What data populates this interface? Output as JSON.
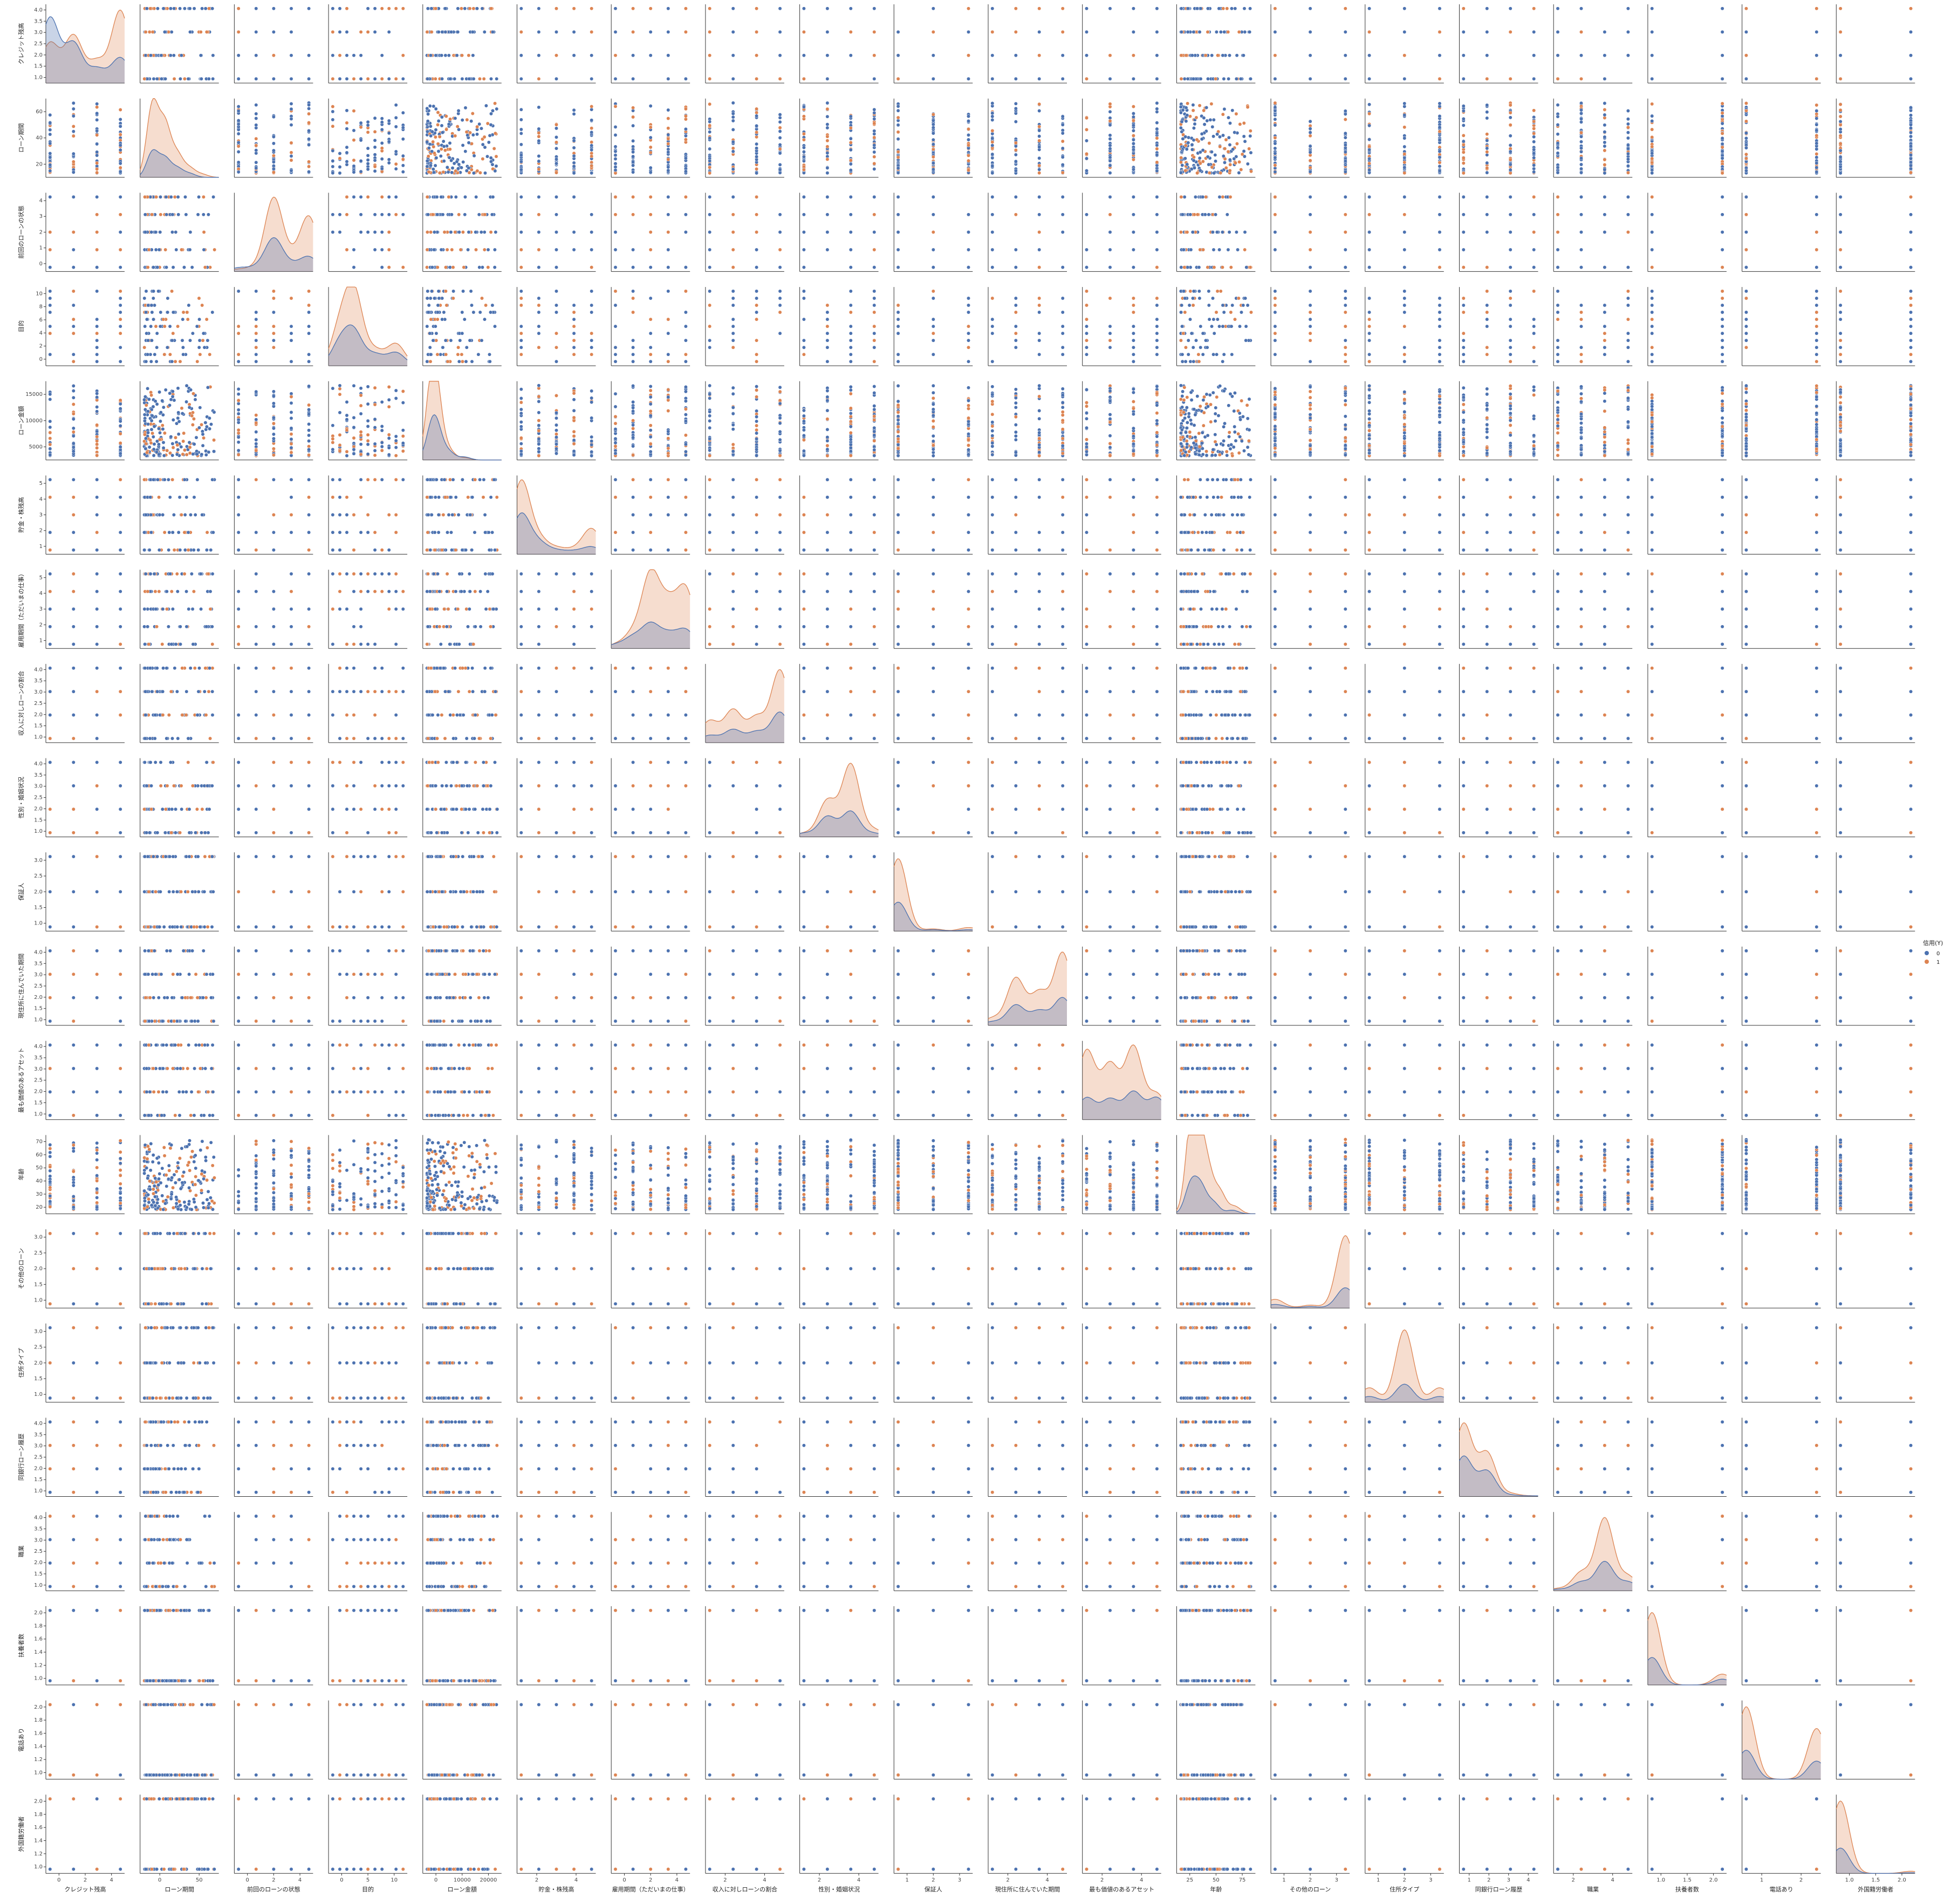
{
  "chart_data": {
    "type": "scatter",
    "subtype": "pairplot",
    "diag_kind": "kde",
    "hue": "信用(Y)",
    "hue_levels": [
      "0",
      "1"
    ],
    "hue_colors": [
      "#4c72b0",
      "#dd8452"
    ],
    "legend_placement": "right",
    "grid": false,
    "variables": [
      {
        "name": "クレジット残高",
        "range": [
          1,
          4
        ],
        "xticks": [
          "0",
          "2",
          "4"
        ],
        "yticks": [
          "1.0",
          "1.5",
          "2.0",
          "2.5",
          "3.0",
          "3.5",
          "4.0"
        ],
        "kde0": [
          [
            1,
            0.9
          ],
          [
            2,
            0.55
          ],
          [
            3,
            0.2
          ],
          [
            4,
            0.35
          ]
        ],
        "kde1": [
          [
            1,
            0.55
          ],
          [
            2,
            0.65
          ],
          [
            3,
            0.3
          ],
          [
            4,
            1.0
          ]
        ]
      },
      {
        "name": "ローン期間",
        "range": [
          4,
          72
        ],
        "xticks": [
          "0",
          "50"
        ],
        "yticks": [
          "20",
          "40",
          "60"
        ],
        "kde0": [
          [
            12,
            0.35
          ],
          [
            24,
            0.25
          ],
          [
            36,
            0.12
          ],
          [
            48,
            0.05
          ]
        ],
        "kde1": [
          [
            12,
            1.0
          ],
          [
            24,
            0.7
          ],
          [
            36,
            0.3
          ],
          [
            48,
            0.12
          ],
          [
            60,
            0.04
          ]
        ]
      },
      {
        "name": "前回のローンの状態",
        "range": [
          0,
          4
        ],
        "xticks": [
          "0",
          "2",
          "4"
        ],
        "yticks": [
          "0",
          "1",
          "2",
          "3",
          "4"
        ],
        "kde0": [
          [
            0,
            0.05
          ],
          [
            1,
            0.05
          ],
          [
            2,
            0.45
          ],
          [
            3,
            0.08
          ],
          [
            4,
            0.2
          ]
        ],
        "kde1": [
          [
            0,
            0.03
          ],
          [
            1,
            0.05
          ],
          [
            2,
            1.0
          ],
          [
            3,
            0.15
          ],
          [
            4,
            0.75
          ]
        ]
      },
      {
        "name": "目的",
        "range": [
          0,
          10
        ],
        "xticks": [
          "0",
          "5",
          "10"
        ],
        "yticks": [
          "0",
          "2",
          "4",
          "6",
          "8",
          "10"
        ],
        "kde0": [
          [
            1,
            0.3
          ],
          [
            3,
            0.45
          ],
          [
            6,
            0.15
          ],
          [
            9,
            0.18
          ]
        ],
        "kde1": [
          [
            1,
            0.5
          ],
          [
            3,
            1.0
          ],
          [
            6,
            0.2
          ],
          [
            9,
            0.3
          ]
        ]
      },
      {
        "name": "ローン金額",
        "range": [
          250,
          18424
        ],
        "xticks": [
          "0",
          "10000",
          "20000"
        ],
        "yticks": [
          "5000",
          "10000",
          "15000"
        ],
        "kde0": [
          [
            1500,
            0.4
          ],
          [
            3000,
            0.3
          ],
          [
            6000,
            0.1
          ],
          [
            10000,
            0.04
          ]
        ],
        "kde1": [
          [
            1500,
            1.0
          ],
          [
            3000,
            0.55
          ],
          [
            6000,
            0.12
          ],
          [
            10000,
            0.03
          ]
        ]
      },
      {
        "name": "貯金・株残高",
        "range": [
          1,
          5
        ],
        "xticks": [
          "2",
          "4"
        ],
        "yticks": [
          "1",
          "2",
          "3",
          "4",
          "5"
        ],
        "kde0": [
          [
            1,
            0.55
          ],
          [
            2,
            0.15
          ],
          [
            3,
            0.05
          ],
          [
            4,
            0.04
          ],
          [
            5,
            0.1
          ]
        ],
        "kde1": [
          [
            1,
            1.0
          ],
          [
            2,
            0.2
          ],
          [
            3,
            0.08
          ],
          [
            4,
            0.06
          ],
          [
            5,
            0.35
          ]
        ]
      },
      {
        "name": "雇用期間（ただいまの仕事）",
        "range": [
          1,
          5
        ],
        "xticks": [
          "0",
          "2",
          "4"
        ],
        "yticks": [
          "1",
          "2",
          "3",
          "4",
          "5"
        ],
        "kde0": [
          [
            1,
            0.05
          ],
          [
            2,
            0.15
          ],
          [
            3,
            0.32
          ],
          [
            4,
            0.18
          ],
          [
            5,
            0.25
          ]
        ],
        "kde1": [
          [
            1,
            0.05
          ],
          [
            2,
            0.2
          ],
          [
            3,
            1.0
          ],
          [
            4,
            0.55
          ],
          [
            5,
            0.8
          ]
        ]
      },
      {
        "name": "収入に対しローンの割合",
        "range": [
          1,
          4
        ],
        "xticks": [
          "2",
          "4"
        ],
        "yticks": [
          "1.0",
          "1.5",
          "2.0",
          "2.5",
          "3.0",
          "3.5",
          "4.0"
        ],
        "kde0": [
          [
            1,
            0.1
          ],
          [
            2,
            0.18
          ],
          [
            3,
            0.15
          ],
          [
            4,
            0.42
          ]
        ],
        "kde1": [
          [
            1,
            0.3
          ],
          [
            2,
            0.45
          ],
          [
            3,
            0.35
          ],
          [
            4,
            1.0
          ]
        ]
      },
      {
        "name": "性別・婚姻状況",
        "range": [
          1,
          4
        ],
        "xticks": [
          "2",
          "4"
        ],
        "yticks": [
          "1.0",
          "1.5",
          "2.0",
          "2.5",
          "3.0",
          "3.5",
          "4.0"
        ],
        "kde0": [
          [
            1,
            0.05
          ],
          [
            2,
            0.28
          ],
          [
            3,
            0.35
          ],
          [
            4,
            0.05
          ]
        ],
        "kde1": [
          [
            1,
            0.05
          ],
          [
            2,
            0.5
          ],
          [
            3,
            1.0
          ],
          [
            4,
            0.1
          ]
        ]
      },
      {
        "name": "保証人",
        "range": [
          1,
          3
        ],
        "xticks": [
          "1",
          "2",
          "3"
        ],
        "yticks": [
          "1.0",
          "1.5",
          "2.0",
          "2.5",
          "3.0"
        ],
        "kde0": [
          [
            1,
            0.4
          ],
          [
            2,
            0.02
          ],
          [
            3,
            0.02
          ]
        ],
        "kde1": [
          [
            1,
            1.0
          ],
          [
            2,
            0.03
          ],
          [
            3,
            0.05
          ]
        ]
      },
      {
        "name": "現住所に住んでいた期間",
        "range": [
          1,
          4
        ],
        "xticks": [
          "2",
          "4"
        ],
        "yticks": [
          "1.0",
          "1.5",
          "2.0",
          "2.5",
          "3.0",
          "3.5",
          "4.0"
        ],
        "kde0": [
          [
            1,
            0.05
          ],
          [
            2,
            0.28
          ],
          [
            3,
            0.2
          ],
          [
            4,
            0.38
          ]
        ],
        "kde1": [
          [
            1,
            0.1
          ],
          [
            2,
            0.65
          ],
          [
            3,
            0.45
          ],
          [
            4,
            1.0
          ]
        ]
      },
      {
        "name": "最も価値のあるアセット",
        "range": [
          1,
          4
        ],
        "xticks": [
          "2",
          "4"
        ],
        "yticks": [
          "1.0",
          "1.5",
          "2.0",
          "2.5",
          "3.0",
          "3.5",
          "4.0"
        ],
        "kde0": [
          [
            1,
            0.3
          ],
          [
            2,
            0.28
          ],
          [
            3,
            0.38
          ],
          [
            4,
            0.3
          ]
        ],
        "kde1": [
          [
            1,
            0.95
          ],
          [
            2,
            0.75
          ],
          [
            3,
            1.0
          ],
          [
            4,
            0.35
          ]
        ]
      },
      {
        "name": "年齢",
        "range": [
          19,
          75
        ],
        "xticks": [
          "25",
          "50",
          "75"
        ],
        "yticks": [
          "20",
          "30",
          "40",
          "50",
          "60",
          "70"
        ],
        "kde0": [
          [
            27,
            0.4
          ],
          [
            35,
            0.35
          ],
          [
            45,
            0.15
          ],
          [
            60,
            0.05
          ]
        ],
        "kde1": [
          [
            27,
            0.95
          ],
          [
            32,
            1.0
          ],
          [
            40,
            0.6
          ],
          [
            50,
            0.3
          ],
          [
            62,
            0.1
          ]
        ]
      },
      {
        "name": "その他のローン",
        "range": [
          1,
          3
        ],
        "xticks": [
          "1",
          "2",
          "3"
        ],
        "yticks": [
          "1.0",
          "1.5",
          "2.0",
          "2.5",
          "3.0"
        ],
        "kde0": [
          [
            1,
            0.05
          ],
          [
            2,
            0.02
          ],
          [
            3,
            0.28
          ]
        ],
        "kde1": [
          [
            1,
            0.12
          ],
          [
            2,
            0.04
          ],
          [
            3,
            1.0
          ]
        ]
      },
      {
        "name": "住所タイプ",
        "range": [
          1,
          3
        ],
        "xticks": [
          "1",
          "2",
          "3"
        ],
        "yticks": [
          "1.0",
          "1.5",
          "2.0",
          "2.5",
          "3.0"
        ],
        "kde0": [
          [
            1,
            0.08
          ],
          [
            2,
            0.25
          ],
          [
            3,
            0.08
          ]
        ],
        "kde1": [
          [
            1,
            0.2
          ],
          [
            2,
            1.0
          ],
          [
            3,
            0.2
          ]
        ]
      },
      {
        "name": "同銀行ローン履歴",
        "range": [
          1,
          4
        ],
        "xticks": [
          "1",
          "2",
          "3",
          "4"
        ],
        "yticks": [
          "1.0",
          "1.5",
          "2.0",
          "2.5",
          "3.0",
          "3.5",
          "4.0"
        ],
        "kde0": [
          [
            1,
            0.55
          ],
          [
            2,
            0.35
          ],
          [
            3,
            0.02
          ],
          [
            4,
            0.01
          ]
        ],
        "kde1": [
          [
            1,
            1.0
          ],
          [
            2,
            0.6
          ],
          [
            3,
            0.04
          ],
          [
            4,
            0.01
          ]
        ]
      },
      {
        "name": "職業",
        "range": [
          1,
          4
        ],
        "xticks": [
          "2",
          "4"
        ],
        "yticks": [
          "1.0",
          "1.5",
          "2.0",
          "2.5",
          "3.0",
          "3.5",
          "4.0"
        ],
        "kde0": [
          [
            1,
            0.02
          ],
          [
            2,
            0.12
          ],
          [
            3,
            0.4
          ],
          [
            4,
            0.12
          ]
        ],
        "kde1": [
          [
            1,
            0.03
          ],
          [
            2,
            0.25
          ],
          [
            3,
            1.0
          ],
          [
            4,
            0.2
          ]
        ]
      },
      {
        "name": "扶養者数",
        "range": [
          1,
          2
        ],
        "xticks": [
          "1.0",
          "1.5",
          "2.0"
        ],
        "yticks": [
          "1.0",
          "1.2",
          "1.4",
          "1.6",
          "1.8",
          "2.0"
        ],
        "kde0": [
          [
            1,
            0.38
          ],
          [
            2,
            0.08
          ]
        ],
        "kde1": [
          [
            1,
            1.0
          ],
          [
            2,
            0.15
          ]
        ]
      },
      {
        "name": "電話あり",
        "range": [
          1,
          2
        ],
        "xticks": [
          "1",
          "2"
        ],
        "yticks": [
          "1.0",
          "1.2",
          "1.4",
          "1.6",
          "1.8",
          "2.0"
        ],
        "kde0": [
          [
            1,
            0.4
          ],
          [
            2,
            0.25
          ]
        ],
        "kde1": [
          [
            1,
            1.0
          ],
          [
            2,
            0.7
          ]
        ]
      },
      {
        "name": "外国籍労働者",
        "range": [
          1,
          2
        ],
        "xticks": [
          "1.0",
          "1.5",
          "2.0"
        ],
        "yticks": [
          "1.0",
          "1.2",
          "1.4",
          "1.6",
          "1.8",
          "2.0"
        ],
        "kde0": [
          [
            1,
            0.35
          ],
          [
            2,
            0.01
          ]
        ],
        "kde1": [
          [
            1,
            1.0
          ],
          [
            2,
            0.03
          ]
        ]
      }
    ]
  }
}
